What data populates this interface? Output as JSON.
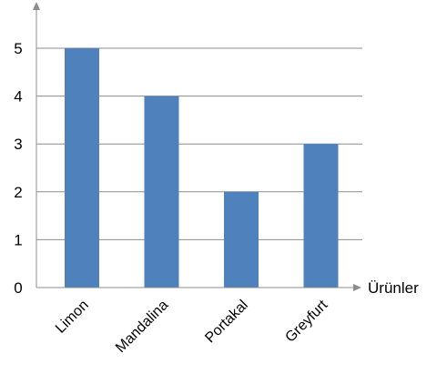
{
  "chart_data": {
    "type": "bar",
    "categories": [
      "Limon",
      "Mandalina",
      "Portakal",
      "Greyfurt"
    ],
    "values": [
      5,
      4,
      2,
      3
    ],
    "title": "",
    "xlabel": "Ürünler",
    "ylabel": "",
    "ylim": [
      0,
      5
    ],
    "y_ticks": [
      0,
      1,
      2,
      3,
      4,
      5
    ],
    "grid": true,
    "bar_color": "#4f81bd",
    "grid_color": "#8c8c8c",
    "axis_color": "#8c8c8c"
  }
}
